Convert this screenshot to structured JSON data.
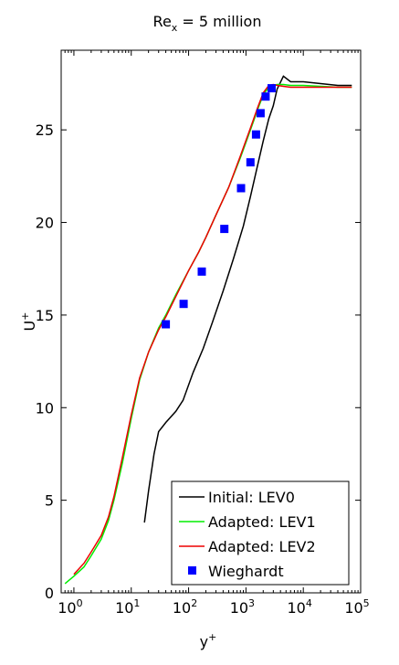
{
  "chart_data": {
    "type": "line",
    "title": {
      "base": "Re",
      "sub": "x",
      "rest": " = 5 million"
    },
    "xlabel": {
      "base": "y",
      "sup": "+"
    },
    "ylabel": {
      "base": "U",
      "sup": "+"
    },
    "xscale": "log",
    "xlim": [
      0.6,
      100000
    ],
    "ylim": [
      0,
      29.3
    ],
    "xticks": [
      {
        "value": 1,
        "base": "10",
        "exp": "0"
      },
      {
        "value": 10,
        "base": "10",
        "exp": "1"
      },
      {
        "value": 100,
        "base": "10",
        "exp": "2"
      },
      {
        "value": 1000,
        "base": "10",
        "exp": "3"
      },
      {
        "value": 10000,
        "base": "10",
        "exp": "4"
      },
      {
        "value": 100000,
        "base": "10",
        "exp": "5"
      }
    ],
    "yticks": [
      0,
      5,
      10,
      15,
      20,
      25
    ],
    "grid": false,
    "legend_position": "bottom-right",
    "series": [
      {
        "name": "Initial: LEV0",
        "style": "line",
        "color": "#000000",
        "x": [
          17,
          20,
          25,
          30,
          40,
          60,
          80,
          120,
          180,
          260,
          400,
          600,
          900,
          1200,
          1600,
          2000,
          2500,
          3000,
          3500,
          4500,
          6000,
          10000,
          20000,
          40000,
          70000
        ],
        "y": [
          3.8,
          5.5,
          7.5,
          8.7,
          9.2,
          9.8,
          10.4,
          11.9,
          13.2,
          14.6,
          16.3,
          18.0,
          19.8,
          21.4,
          23.1,
          24.4,
          25.6,
          26.3,
          27.2,
          27.9,
          27.6,
          27.6,
          27.5,
          27.4,
          27.4
        ]
      },
      {
        "name": "Adapted: LEV1",
        "style": "line",
        "color": "#00ee00",
        "x": [
          0.7,
          1,
          1.5,
          2,
          3,
          4,
          5,
          7,
          10,
          14,
          20,
          30,
          40,
          60,
          100,
          150,
          200,
          300,
          500,
          800,
          1200,
          1600,
          2000,
          2500,
          3000,
          3500,
          4500,
          6000,
          10000,
          20000,
          40000,
          70000
        ],
        "y": [
          0.5,
          0.9,
          1.4,
          2.0,
          2.9,
          3.9,
          5.0,
          7.0,
          9.4,
          11.5,
          13.0,
          14.3,
          15.0,
          16.1,
          17.4,
          18.4,
          19.2,
          20.4,
          21.9,
          23.5,
          25.0,
          26.1,
          26.9,
          27.3,
          27.4,
          27.45,
          27.45,
          27.4,
          27.4,
          27.35,
          27.3,
          27.3
        ]
      },
      {
        "name": "Adapted: LEV2",
        "style": "line",
        "color": "#ee0000",
        "x": [
          1,
          1.5,
          2,
          3,
          4,
          5,
          7,
          10,
          14,
          20,
          30,
          40,
          60,
          100,
          150,
          200,
          300,
          500,
          800,
          1200,
          1600,
          2000,
          2500,
          3000,
          3500,
          4500,
          6000,
          10000,
          20000,
          40000,
          70000
        ],
        "y": [
          1.0,
          1.6,
          2.2,
          3.1,
          4.1,
          5.2,
          7.3,
          9.6,
          11.6,
          13.0,
          14.2,
          14.9,
          16.0,
          17.4,
          18.4,
          19.2,
          20.4,
          21.9,
          23.6,
          25.1,
          26.2,
          27.0,
          27.4,
          27.45,
          27.4,
          27.35,
          27.3,
          27.3,
          27.3,
          27.3,
          27.3
        ]
      },
      {
        "name": "Wieghardt",
        "style": "marker",
        "color": "#0000ff",
        "x": [
          40,
          82,
          170,
          420,
          820,
          1200,
          1500,
          1800,
          2200,
          2800
        ],
        "y": [
          14.5,
          15.6,
          17.35,
          19.65,
          21.85,
          23.25,
          24.75,
          25.9,
          26.8,
          27.25
        ]
      }
    ]
  }
}
